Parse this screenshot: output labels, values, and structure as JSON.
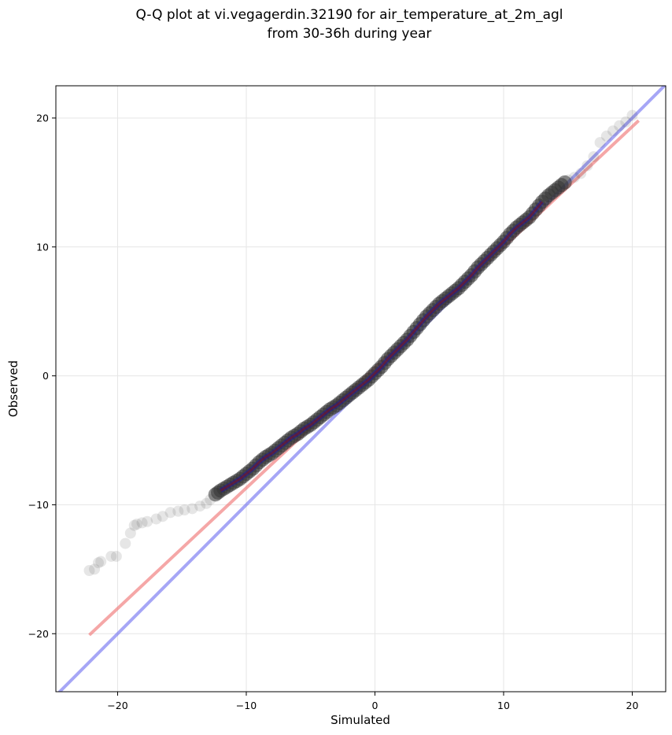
{
  "chart_data": {
    "type": "scatter",
    "title_lines": [
      "Q-Q plot at vi.vegagerdin.32190 for air_temperature_at_2m_agl",
      "from 30-36h during year"
    ],
    "xlabel": "Simulated",
    "ylabel": "Observed",
    "xlim": [
      -24.8,
      22.6
    ],
    "ylim": [
      -24.5,
      22.5
    ],
    "xticks": [
      -20,
      -10,
      0,
      10,
      20
    ],
    "yticks": [
      -20,
      -10,
      0,
      10,
      20
    ],
    "tick_labels": [
      "−20",
      "−10",
      "0",
      "10",
      "20"
    ],
    "grid": true,
    "legend": "none",
    "colors": {
      "points": "#333333",
      "identity_line": "#6a6af0",
      "fit_line": "#f07878",
      "inner_trace_blue": "#1a1aa0",
      "inner_trace_red": "#8a1010"
    },
    "identity_line": {
      "x": [
        -24.8,
        22.6
      ],
      "y": [
        -24.8,
        22.6
      ]
    },
    "fit_line": {
      "x": [
        -22.2,
        20.5
      ],
      "y": [
        -20.1,
        19.8
      ]
    },
    "series": [
      {
        "values_x": [
          -22.2,
          -21.8,
          -21.5,
          -21.3,
          -20.5,
          -20.1,
          -19.4,
          -19.0,
          -18.7,
          -18.5,
          -18.1,
          -17.7,
          -17.0,
          -16.5,
          -15.9,
          -15.3,
          -14.8,
          -14.2,
          -13.6,
          -13.1,
          -12.8,
          -12.4,
          -12.0,
          -11.5,
          -11.0,
          -10.5,
          -10.0,
          -9.5,
          -9.0,
          -8.5,
          -8.0,
          -7.5,
          -7.0,
          -6.5,
          -6.0,
          -5.5,
          -5.0,
          -4.5,
          -4.0,
          -3.5,
          -3.0,
          -2.5,
          -2.0,
          -1.5,
          -1.0,
          -0.5,
          0.0,
          0.5,
          1.0,
          1.5,
          2.0,
          2.5,
          3.0,
          3.5,
          4.0,
          4.5,
          5.0,
          5.5,
          6.0,
          6.5,
          7.0,
          7.5,
          8.0,
          8.5,
          9.0,
          9.5,
          10.0,
          10.5,
          11.0,
          11.5,
          12.0,
          12.5,
          13.0,
          13.5,
          14.0,
          14.5,
          15.0,
          15.5,
          16.0,
          16.5,
          17.0,
          17.5,
          18.0,
          18.5,
          19.0,
          19.5,
          20.0
        ],
        "values_y": [
          -15.1,
          -15.0,
          -14.5,
          -14.4,
          -14.0,
          -14.0,
          -13.0,
          -12.2,
          -11.6,
          -11.5,
          -11.4,
          -11.3,
          -11.1,
          -10.9,
          -10.6,
          -10.5,
          -10.4,
          -10.3,
          -10.1,
          -9.9,
          -9.6,
          -9.2,
          -8.9,
          -8.6,
          -8.3,
          -8.0,
          -7.6,
          -7.2,
          -6.7,
          -6.3,
          -6.0,
          -5.6,
          -5.2,
          -4.8,
          -4.5,
          -4.1,
          -3.8,
          -3.4,
          -3.0,
          -2.6,
          -2.3,
          -1.9,
          -1.5,
          -1.1,
          -0.7,
          -0.3,
          0.2,
          0.7,
          1.3,
          1.8,
          2.3,
          2.8,
          3.4,
          4.0,
          4.6,
          5.1,
          5.6,
          6.0,
          6.4,
          6.8,
          7.3,
          7.8,
          8.4,
          8.9,
          9.4,
          9.9,
          10.4,
          11.0,
          11.5,
          11.9,
          12.3,
          12.9,
          13.5,
          14.0,
          14.4,
          14.8,
          15.2,
          15.4,
          15.7,
          16.3,
          17.0,
          18.1,
          18.6,
          19.0,
          19.4,
          19.7,
          20.2
        ]
      }
    ]
  }
}
